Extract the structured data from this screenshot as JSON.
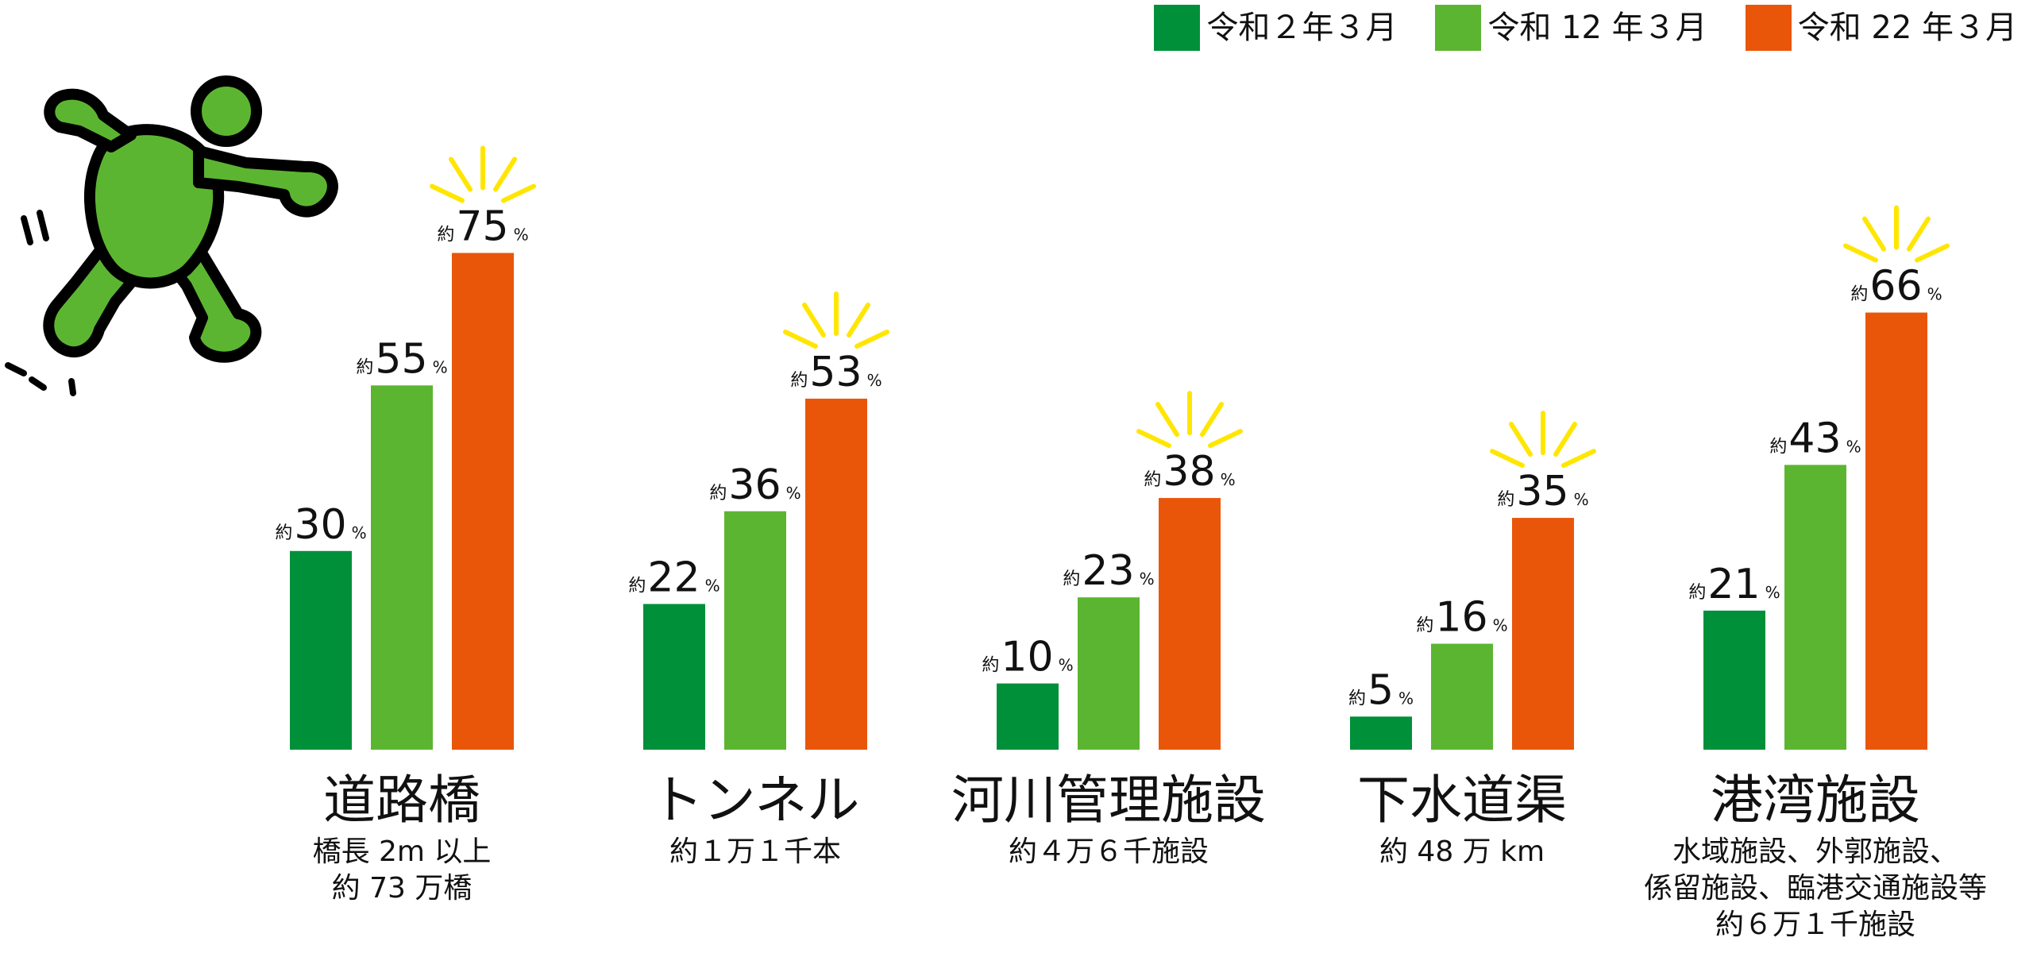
{
  "chart_data": {
    "type": "bar",
    "ylim": [
      0,
      100
    ],
    "value_prefix": "約",
    "value_unit": "%",
    "legend_position": "top-right",
    "series": [
      {
        "name": "令和２年３月",
        "color": "#00903a",
        "values": [
          30,
          22,
          10,
          5,
          21
        ]
      },
      {
        "name": "令和 12 年３月",
        "color": "#5cb531",
        "values": [
          55,
          36,
          23,
          16,
          43
        ]
      },
      {
        "name": "令和 22 年３月",
        "color": "#e9560a",
        "values": [
          75,
          53,
          38,
          35,
          66
        ]
      }
    ],
    "categories": [
      {
        "name": "道路橋",
        "detail": [
          "橋長 2m 以上",
          "約 73 万橋"
        ]
      },
      {
        "name": "トンネル",
        "detail": [
          "約１万１千本"
        ]
      },
      {
        "name": "河川管理施設",
        "detail": [
          "約４万６千施設"
        ]
      },
      {
        "name": "下水道渠",
        "detail": [
          "約 48 万 km"
        ]
      },
      {
        "name": "港湾施設",
        "detail": [
          "水域施設、外郭施設、",
          "係留施設、臨港交通施設等",
          "約６万１千施設"
        ]
      }
    ],
    "highlight_color": "#ffe600"
  }
}
